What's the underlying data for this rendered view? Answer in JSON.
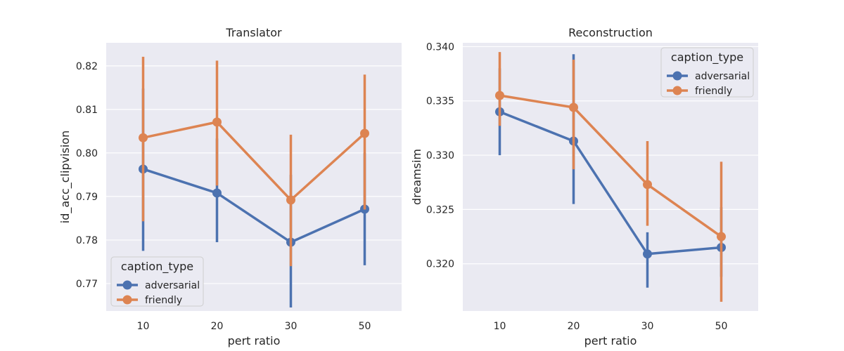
{
  "legend": {
    "title": "caption_type",
    "entries": [
      "adversarial",
      "friendly"
    ]
  },
  "colors": {
    "adversarial": "#4c72b0",
    "friendly": "#dd8452",
    "plot_bg": "#eaeaf2",
    "grid": "#ffffff"
  },
  "chart_data": [
    {
      "type": "line",
      "title": "Translator",
      "xlabel": "pert ratio",
      "ylabel": "id_acc_clipvision",
      "categories": [
        "10",
        "20",
        "30",
        "50"
      ],
      "ylim": [
        0.7637,
        0.8253
      ],
      "yticks": [
        0.77,
        0.78,
        0.79,
        0.8,
        0.81,
        0.82
      ],
      "ytick_labels": [
        "0.77",
        "0.78",
        "0.79",
        "0.80",
        "0.81",
        "0.82"
      ],
      "grid": true,
      "legend_position": "lower-left",
      "series": [
        {
          "name": "adversarial",
          "values": [
            0.7963,
            0.7908,
            0.7795,
            0.7871
          ],
          "err_low": [
            0.7775,
            0.7795,
            0.7645,
            0.7742
          ],
          "err_high": [
            0.8148,
            0.8033,
            0.795,
            0.8
          ]
        },
        {
          "name": "friendly",
          "values": [
            0.8035,
            0.8071,
            0.7892,
            0.8045
          ],
          "err_low": [
            0.7843,
            0.7925,
            0.774,
            0.787
          ],
          "err_high": [
            0.8221,
            0.8212,
            0.8042,
            0.818
          ]
        }
      ]
    },
    {
      "type": "line",
      "title": "Reconstruction",
      "xlabel": "pert ratio",
      "ylabel": "dreamsim",
      "categories": [
        "10",
        "20",
        "30",
        "50"
      ],
      "ylim": [
        0.31565,
        0.34035
      ],
      "yticks": [
        0.32,
        0.325,
        0.33,
        0.335,
        0.34
      ],
      "ytick_labels": [
        "0.320",
        "0.325",
        "0.330",
        "0.335",
        "0.340"
      ],
      "grid": true,
      "legend_position": "top-right",
      "series": [
        {
          "name": "adversarial",
          "values": [
            0.334,
            0.3313,
            0.3209,
            0.3215
          ],
          "err_low": [
            0.33,
            0.3255,
            0.3178,
            0.3188
          ],
          "err_high": [
            0.338,
            0.3393,
            0.3229,
            0.3252
          ]
        },
        {
          "name": "friendly",
          "values": [
            0.3355,
            0.3344,
            0.3273,
            0.3225
          ],
          "err_low": [
            0.3327,
            0.3287,
            0.3235,
            0.3165
          ],
          "err_high": [
            0.3395,
            0.3388,
            0.3313,
            0.3294
          ]
        }
      ]
    }
  ]
}
